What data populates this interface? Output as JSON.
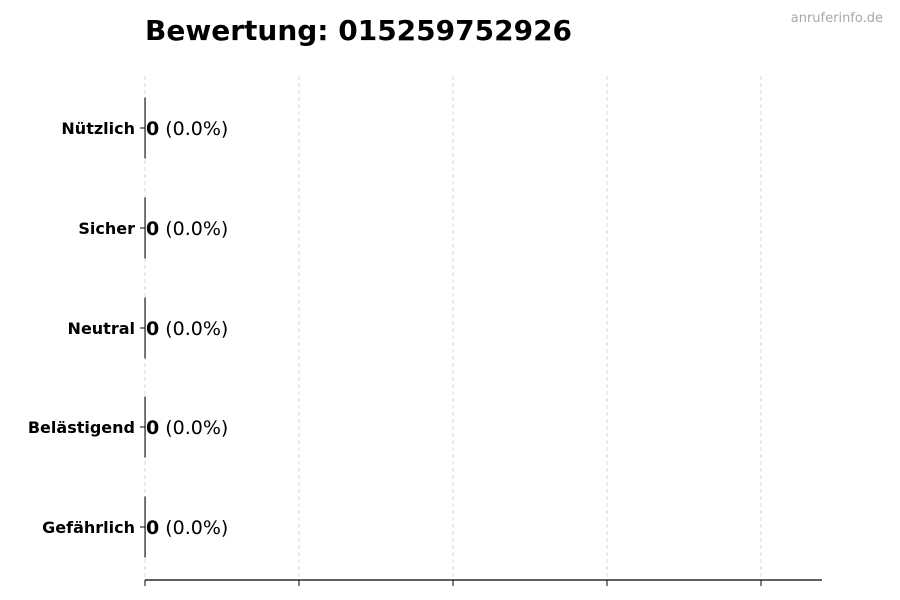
{
  "watermark": "anruferinfo.de",
  "chart_data": {
    "type": "bar",
    "orientation": "horizontal",
    "title": "Bewertung: 015259752926",
    "categories": [
      "Nützlich",
      "Sicher",
      "Neutral",
      "Belästigend",
      "Gefährlich"
    ],
    "values": [
      0,
      0,
      0,
      0,
      0
    ],
    "percent_labels": [
      "(0.0%)",
      "(0.0%)",
      "(0.0%)",
      "(0.0%)",
      "(0.0%)"
    ],
    "xlabel": "",
    "ylabel": "",
    "grid": "vertical dashed",
    "x_tick_labels": "none"
  }
}
